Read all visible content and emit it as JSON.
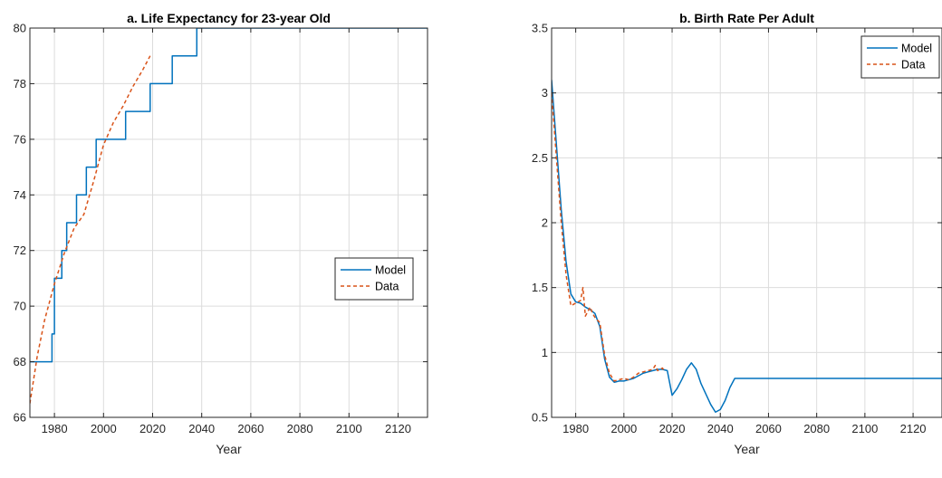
{
  "chart_data": [
    {
      "type": "line",
      "title": "a. Life Expectancy for 23-year Old",
      "xlabel": "Year",
      "ylabel": "",
      "xlim": [
        1970,
        2132
      ],
      "ylim": [
        66,
        80
      ],
      "xticks": [
        1980,
        2000,
        2020,
        2040,
        2060,
        2080,
        2100,
        2120
      ],
      "yticks": [
        66,
        68,
        70,
        72,
        74,
        76,
        78,
        80
      ],
      "grid": true,
      "legend": "center-right",
      "series": [
        {
          "name": "Model",
          "color": "#0072BD",
          "style": "solid",
          "x": [
            1970,
            1979,
            1979,
            1980,
            1980,
            1983,
            1983,
            1985,
            1985,
            1987,
            1987,
            1989,
            1989,
            1993,
            1993,
            1997,
            1997,
            2003,
            2003,
            2009,
            2009,
            2019,
            2019,
            2028,
            2028,
            2038,
            2038,
            2132
          ],
          "y": [
            68,
            68,
            69,
            69,
            71,
            71,
            72,
            72,
            73,
            73,
            73,
            73,
            74,
            74,
            75,
            75,
            76,
            76,
            76,
            76,
            77,
            77,
            78,
            78,
            79,
            79,
            80,
            80
          ]
        },
        {
          "name": "Data",
          "color": "#D95319",
          "style": "dashed",
          "x": [
            1970,
            1973,
            1976,
            1980,
            1984,
            1988,
            1992,
            1996,
            2000,
            2004,
            2008,
            2012,
            2016,
            2019
          ],
          "y": [
            66.5,
            68.2,
            69.5,
            70.8,
            71.9,
            72.8,
            73.3,
            74.5,
            75.8,
            76.6,
            77.2,
            77.9,
            78.5,
            79.0
          ]
        }
      ]
    },
    {
      "type": "line",
      "title": "b. Birth Rate Per Adult",
      "xlabel": "Year",
      "ylabel": "",
      "xlim": [
        1970,
        2132
      ],
      "ylim": [
        0.5,
        3.5
      ],
      "xticks": [
        1980,
        2000,
        2020,
        2040,
        2060,
        2080,
        2100,
        2120
      ],
      "yticks": [
        0.5,
        1,
        1.5,
        2,
        2.5,
        3,
        3.5
      ],
      "grid": true,
      "legend": "top-right",
      "series": [
        {
          "name": "Model",
          "color": "#0072BD",
          "style": "solid",
          "x": [
            1970,
            1972,
            1974,
            1976,
            1978,
            1980,
            1982,
            1984,
            1986,
            1988,
            1990,
            1992,
            1994,
            1996,
            1998,
            2000,
            2002,
            2004,
            2006,
            2008,
            2010,
            2012,
            2014,
            2016,
            2018,
            2020,
            2022,
            2024,
            2026,
            2028,
            2030,
            2032,
            2034,
            2036,
            2038,
            2040,
            2042,
            2044,
            2046,
            2048,
            2060,
            2080,
            2100,
            2132
          ],
          "y": [
            3.1,
            2.6,
            2.1,
            1.7,
            1.45,
            1.39,
            1.38,
            1.35,
            1.33,
            1.3,
            1.2,
            0.95,
            0.81,
            0.77,
            0.78,
            0.78,
            0.79,
            0.8,
            0.82,
            0.84,
            0.85,
            0.86,
            0.87,
            0.87,
            0.86,
            0.67,
            0.72,
            0.79,
            0.87,
            0.92,
            0.87,
            0.76,
            0.68,
            0.6,
            0.54,
            0.56,
            0.63,
            0.73,
            0.8,
            0.8,
            0.8,
            0.8,
            0.8,
            0.8
          ]
        },
        {
          "name": "Data",
          "color": "#D95319",
          "style": "dashed",
          "x": [
            1970,
            1972,
            1974,
            1976,
            1978,
            1980,
            1982,
            1983,
            1984,
            1986,
            1987,
            1988,
            1990,
            1992,
            1994,
            1996,
            1998,
            2000,
            2002,
            2004,
            2006,
            2008,
            2010,
            2012,
            2013,
            2014,
            2016,
            2017
          ],
          "y": [
            3.0,
            2.5,
            2.0,
            1.6,
            1.36,
            1.38,
            1.4,
            1.5,
            1.28,
            1.35,
            1.3,
            1.27,
            1.23,
            0.98,
            0.84,
            0.78,
            0.79,
            0.8,
            0.79,
            0.81,
            0.84,
            0.85,
            0.86,
            0.87,
            0.9,
            0.86,
            0.88,
            0.85
          ]
        }
      ]
    }
  ]
}
